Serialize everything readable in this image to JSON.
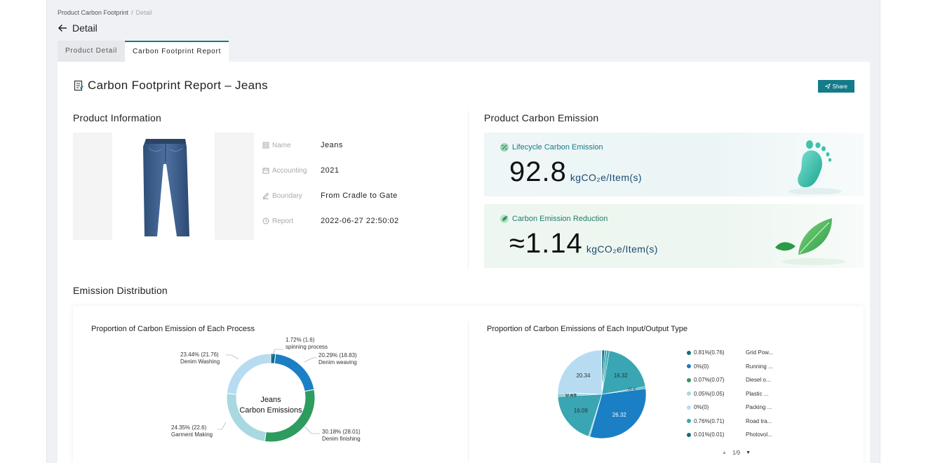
{
  "breadcrumb": {
    "root": "Product Carbon Footprint",
    "separator": "/",
    "current": "Detail"
  },
  "header": {
    "title": "Detail"
  },
  "tabs": [
    {
      "label": "Product Detail",
      "active": false
    },
    {
      "label": "Carbon Footprint Report",
      "active": true
    }
  ],
  "report": {
    "title": "Carbon Footprint Report – Jeans",
    "share_label": "Share"
  },
  "product_info": {
    "heading": "Product Information",
    "fields": [
      {
        "label": "Name",
        "value": "Jeans",
        "icon": "grid-icon"
      },
      {
        "label": "Accounting",
        "value": "2021",
        "icon": "calendar-icon"
      },
      {
        "label": "Boundary",
        "value": "From Cradle to Gate",
        "icon": "edit-icon"
      },
      {
        "label": "Report",
        "value": "2022-06-27 22:50:02",
        "icon": "clock-icon"
      }
    ]
  },
  "emission": {
    "heading": "Product Carbon Emission",
    "lifecycle": {
      "label": "Lifecycle Carbon Emission",
      "value": "92.8",
      "unit": "kgCO₂e/Item(s)"
    },
    "reduction": {
      "label": "Carbon Emission Reduction",
      "value": "≈1.14",
      "unit": "kgCO₂e/Item(s)"
    }
  },
  "distribution": {
    "heading": "Emission Distribution",
    "pager": {
      "text": "1/9"
    }
  },
  "colors": {
    "accent": "#147b8a",
    "teal": "#3aa6b3",
    "blue": "#1a7fc4",
    "green": "#2e9b5f",
    "lightblue": "#b7dcf2"
  },
  "chart_data": [
    {
      "type": "pie",
      "title": "Proportion of Carbon Emission of Each Process",
      "center_label": [
        "Jeans",
        "Carbon Emissions"
      ],
      "categories": [
        "spinning process",
        "Denim weaving",
        "Denim finishing",
        "Garment Making",
        "Denim Washing"
      ],
      "values": [
        1.6,
        18.83,
        28.01,
        22.6,
        21.76
      ],
      "percents": [
        "1.72%",
        "20.29%",
        "30.18%",
        "24.35%",
        "23.44%"
      ],
      "labels": [
        [
          "1.72% (1.6)",
          "spinning process"
        ],
        [
          "20.29% (18.83)",
          "Denim weaving"
        ],
        [
          "30.18% (28.01)",
          "Denim finishing"
        ],
        [
          "24.35% (22.6)",
          "Garment Making"
        ],
        [
          "23.44% (21.76)",
          "Denim Washing"
        ]
      ],
      "colors": [
        "#0d6e8a",
        "#1a7fc4",
        "#2e9b5f",
        "#a8d8e0",
        "#b7dcf2"
      ]
    },
    {
      "type": "pie",
      "title": "Proportion of Carbon Emissions of Each Input/Output Type",
      "slices": [
        {
          "value": 0.76,
          "color": "#0e6f7c"
        },
        {
          "value": 0.71,
          "color": "#3aa6b3"
        },
        {
          "value": 0.8,
          "color": "#3aa6b3"
        },
        {
          "value": 16.32,
          "color": "#3aa6b3",
          "label": "16.32"
        },
        {
          "value": 0.6,
          "color": "#5fb8c2",
          "label": "0.6"
        },
        {
          "value": 26.32,
          "color": "#1a7fc4",
          "label": "26.32"
        },
        {
          "value": 0.4,
          "color": "#8ac7d6"
        },
        {
          "value": 16.09,
          "color": "#3aa6b3",
          "label": "16.09"
        },
        {
          "value": 0.85,
          "color": "#8ac7d6",
          "label": "0.85"
        },
        {
          "value": 0.29,
          "color": "#3aa6b3",
          "label": "0.29"
        },
        {
          "value": 20.34,
          "color": "#b7dcf2",
          "label": "20.34"
        },
        {
          "value": 0.07,
          "color": "#2e9b5f"
        },
        {
          "value": 0.05,
          "color": "#a8d8e0"
        }
      ],
      "legend": [
        {
          "pct": "0.81%(0.76)",
          "name": "Grid Pow...",
          "color": "#0e6f7c"
        },
        {
          "pct": "0%(0)",
          "name": "Running ...",
          "color": "#1a7fc4"
        },
        {
          "pct": "0.07%(0.07)",
          "name": "Diesel o...",
          "color": "#2e9b5f"
        },
        {
          "pct": "0.05%(0.05)",
          "name": "Plastic ...",
          "color": "#a8d8e0"
        },
        {
          "pct": "0%(0)",
          "name": "Packing ...",
          "color": "#b7dcf2"
        },
        {
          "pct": "0.76%(0.71)",
          "name": "Road tra...",
          "color": "#3aa6b3"
        },
        {
          "pct": "0.01%(0.01)",
          "name": "Photovol...",
          "color": "#0e6f7c"
        }
      ]
    }
  ]
}
